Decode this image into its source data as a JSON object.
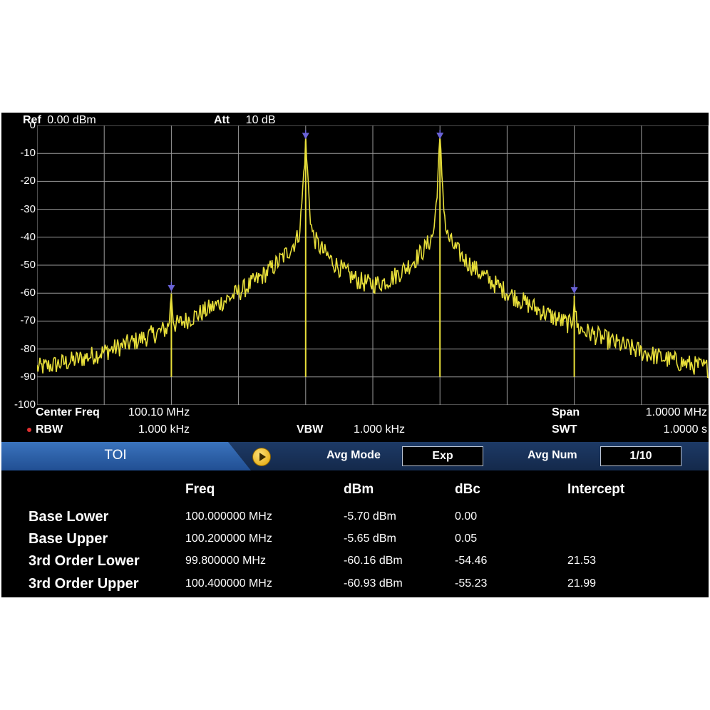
{
  "header": {
    "ref_label": "Ref",
    "ref_value": "0.00 dBm",
    "att_label": "Att",
    "att_value": "10 dB"
  },
  "y_axis": {
    "ticks": [
      "0",
      "-10",
      "-20",
      "-30",
      "-40",
      "-50",
      "-60",
      "-70",
      "-80",
      "-90",
      "-100"
    ]
  },
  "chart_data": {
    "type": "line",
    "ylim": [
      -100,
      0
    ],
    "grid": true,
    "trace_color": "#e8df3a",
    "grid_color": "#9a9a9a",
    "marker_color": "#6a63d8",
    "peaks": [
      {
        "freq_mhz": 99.8,
        "level_dbm": -60.16
      },
      {
        "freq_mhz": 100.0,
        "level_dbm": -5.7
      },
      {
        "freq_mhz": 100.2,
        "level_dbm": -5.65
      },
      {
        "freq_mhz": 100.4,
        "level_dbm": -60.93
      }
    ],
    "noise_floor_dbm": -90
  },
  "settings": {
    "center_freq_label": "Center Freq",
    "center_freq_value": "100.10 MHz",
    "span_label": "Span",
    "span_value": "1.0000 MHz",
    "rbw_label": "RBW",
    "rbw_value": "1.000 kHz",
    "vbw_label": "VBW",
    "vbw_value": "1.000 kHz",
    "swt_label": "SWT",
    "swt_value": "1.0000 s"
  },
  "toolbar": {
    "tab_label": "TOI",
    "avg_mode_label": "Avg Mode",
    "avg_mode_value": "Exp",
    "avg_num_label": "Avg Num",
    "avg_num_value": "1/10"
  },
  "table": {
    "headers": [
      "Freq",
      "dBm",
      "dBc",
      "Intercept"
    ],
    "rows": [
      {
        "label": "Base Lower",
        "freq": "100.000000 MHz",
        "dbm": "-5.70 dBm",
        "dbc": "0.00",
        "intercept": ""
      },
      {
        "label": "Base Upper",
        "freq": "100.200000 MHz",
        "dbm": "-5.65 dBm",
        "dbc": "0.05",
        "intercept": ""
      },
      {
        "label": "3rd Order Lower",
        "freq": "99.800000 MHz",
        "dbm": "-60.16 dBm",
        "dbc": "-54.46",
        "intercept": "21.53"
      },
      {
        "label": "3rd Order Upper",
        "freq": "100.400000 MHz",
        "dbm": "-60.93 dBm",
        "dbc": "-55.23",
        "intercept": "21.99"
      }
    ]
  },
  "colors": {
    "rbw_indicator": "#e03030",
    "tab_blue": "#2f63ac"
  }
}
